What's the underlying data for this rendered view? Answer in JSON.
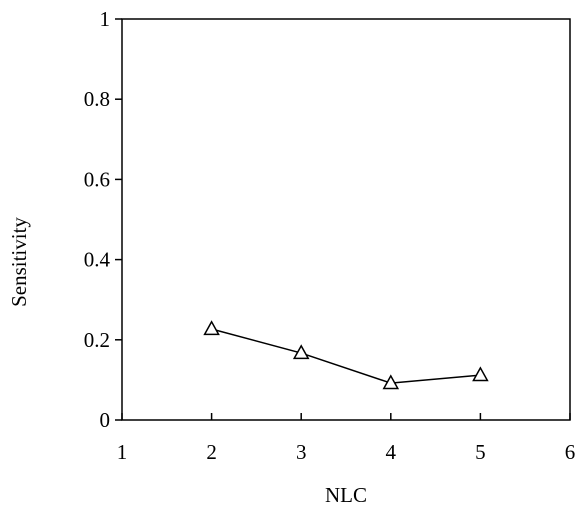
{
  "chart_data": {
    "type": "line",
    "xlabel": "NLC",
    "ylabel": "Sensitivity",
    "xlim": [
      1,
      6
    ],
    "ylim": [
      0,
      1
    ],
    "xticks": [
      "1",
      "2",
      "3",
      "4",
      "5",
      "6"
    ],
    "yticks": [
      "0",
      "0.2",
      "0.4",
      "0.6",
      "0.8",
      "1"
    ],
    "grid": false,
    "legend": "none",
    "series": [
      {
        "marker": "open-triangle",
        "color": "#000000",
        "x": [
          2,
          3,
          4,
          5
        ],
        "y": [
          0.227,
          0.167,
          0.092,
          0.112
        ]
      }
    ]
  }
}
